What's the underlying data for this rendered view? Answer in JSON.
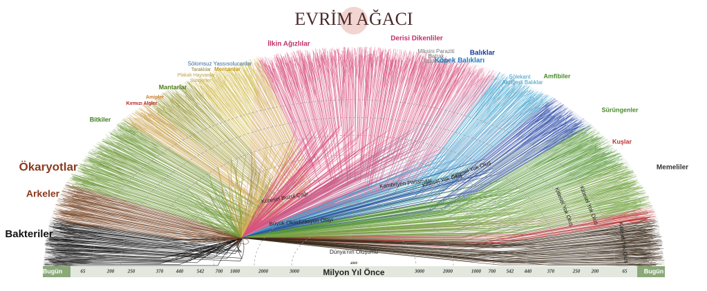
{
  "header": {
    "title": "EVRİM AĞACI"
  },
  "groups": [
    "Bakteriler",
    "Arkeler",
    "Ökaryotlar",
    "Bitkiler",
    "Kırmızı Algler",
    "Amipler",
    "Mantarlar",
    "Süngerler",
    "Plakalı Hayvanlar",
    "Taraklılar",
    "Mercanlar",
    "Sölomsuz Yassısolucanlar",
    "İlkin Ağızlılar",
    "Derisi Dikenliler",
    "Miksini Paraziti",
    "Batrak",
    "Tulumlular",
    "Balıklar",
    "Köpek Balıkları",
    "Sölekant",
    "Akciğerli Balıklar",
    "Amfibiler",
    "Sürüngenler",
    "Kuşlar",
    "Memeliler"
  ],
  "events": [
    "Kitlesel Yok Oluş",
    "Kitlesel Yok Oluş",
    "Kambriyen Patlaması",
    "Küresel Buzul Çağı",
    "Büyük Oksidizasyon Olayı",
    "Dünya'nın Oluşumu",
    "Kitlesel Yok Oluş",
    "Kitlesel Yok Oluş",
    "Kitlesel Yok Oluş"
  ],
  "axis": {
    "title": "Milyon Yıl Önce",
    "labels": [
      "Bugün",
      "65",
      "200",
      "250",
      "370",
      "440",
      "542",
      "700",
      "1000",
      "2000",
      "3000",
      "4000",
      "3000",
      "2000",
      "1000",
      "700",
      "542",
      "440",
      "370",
      "250",
      "200",
      "65",
      "Bugün"
    ]
  }
}
